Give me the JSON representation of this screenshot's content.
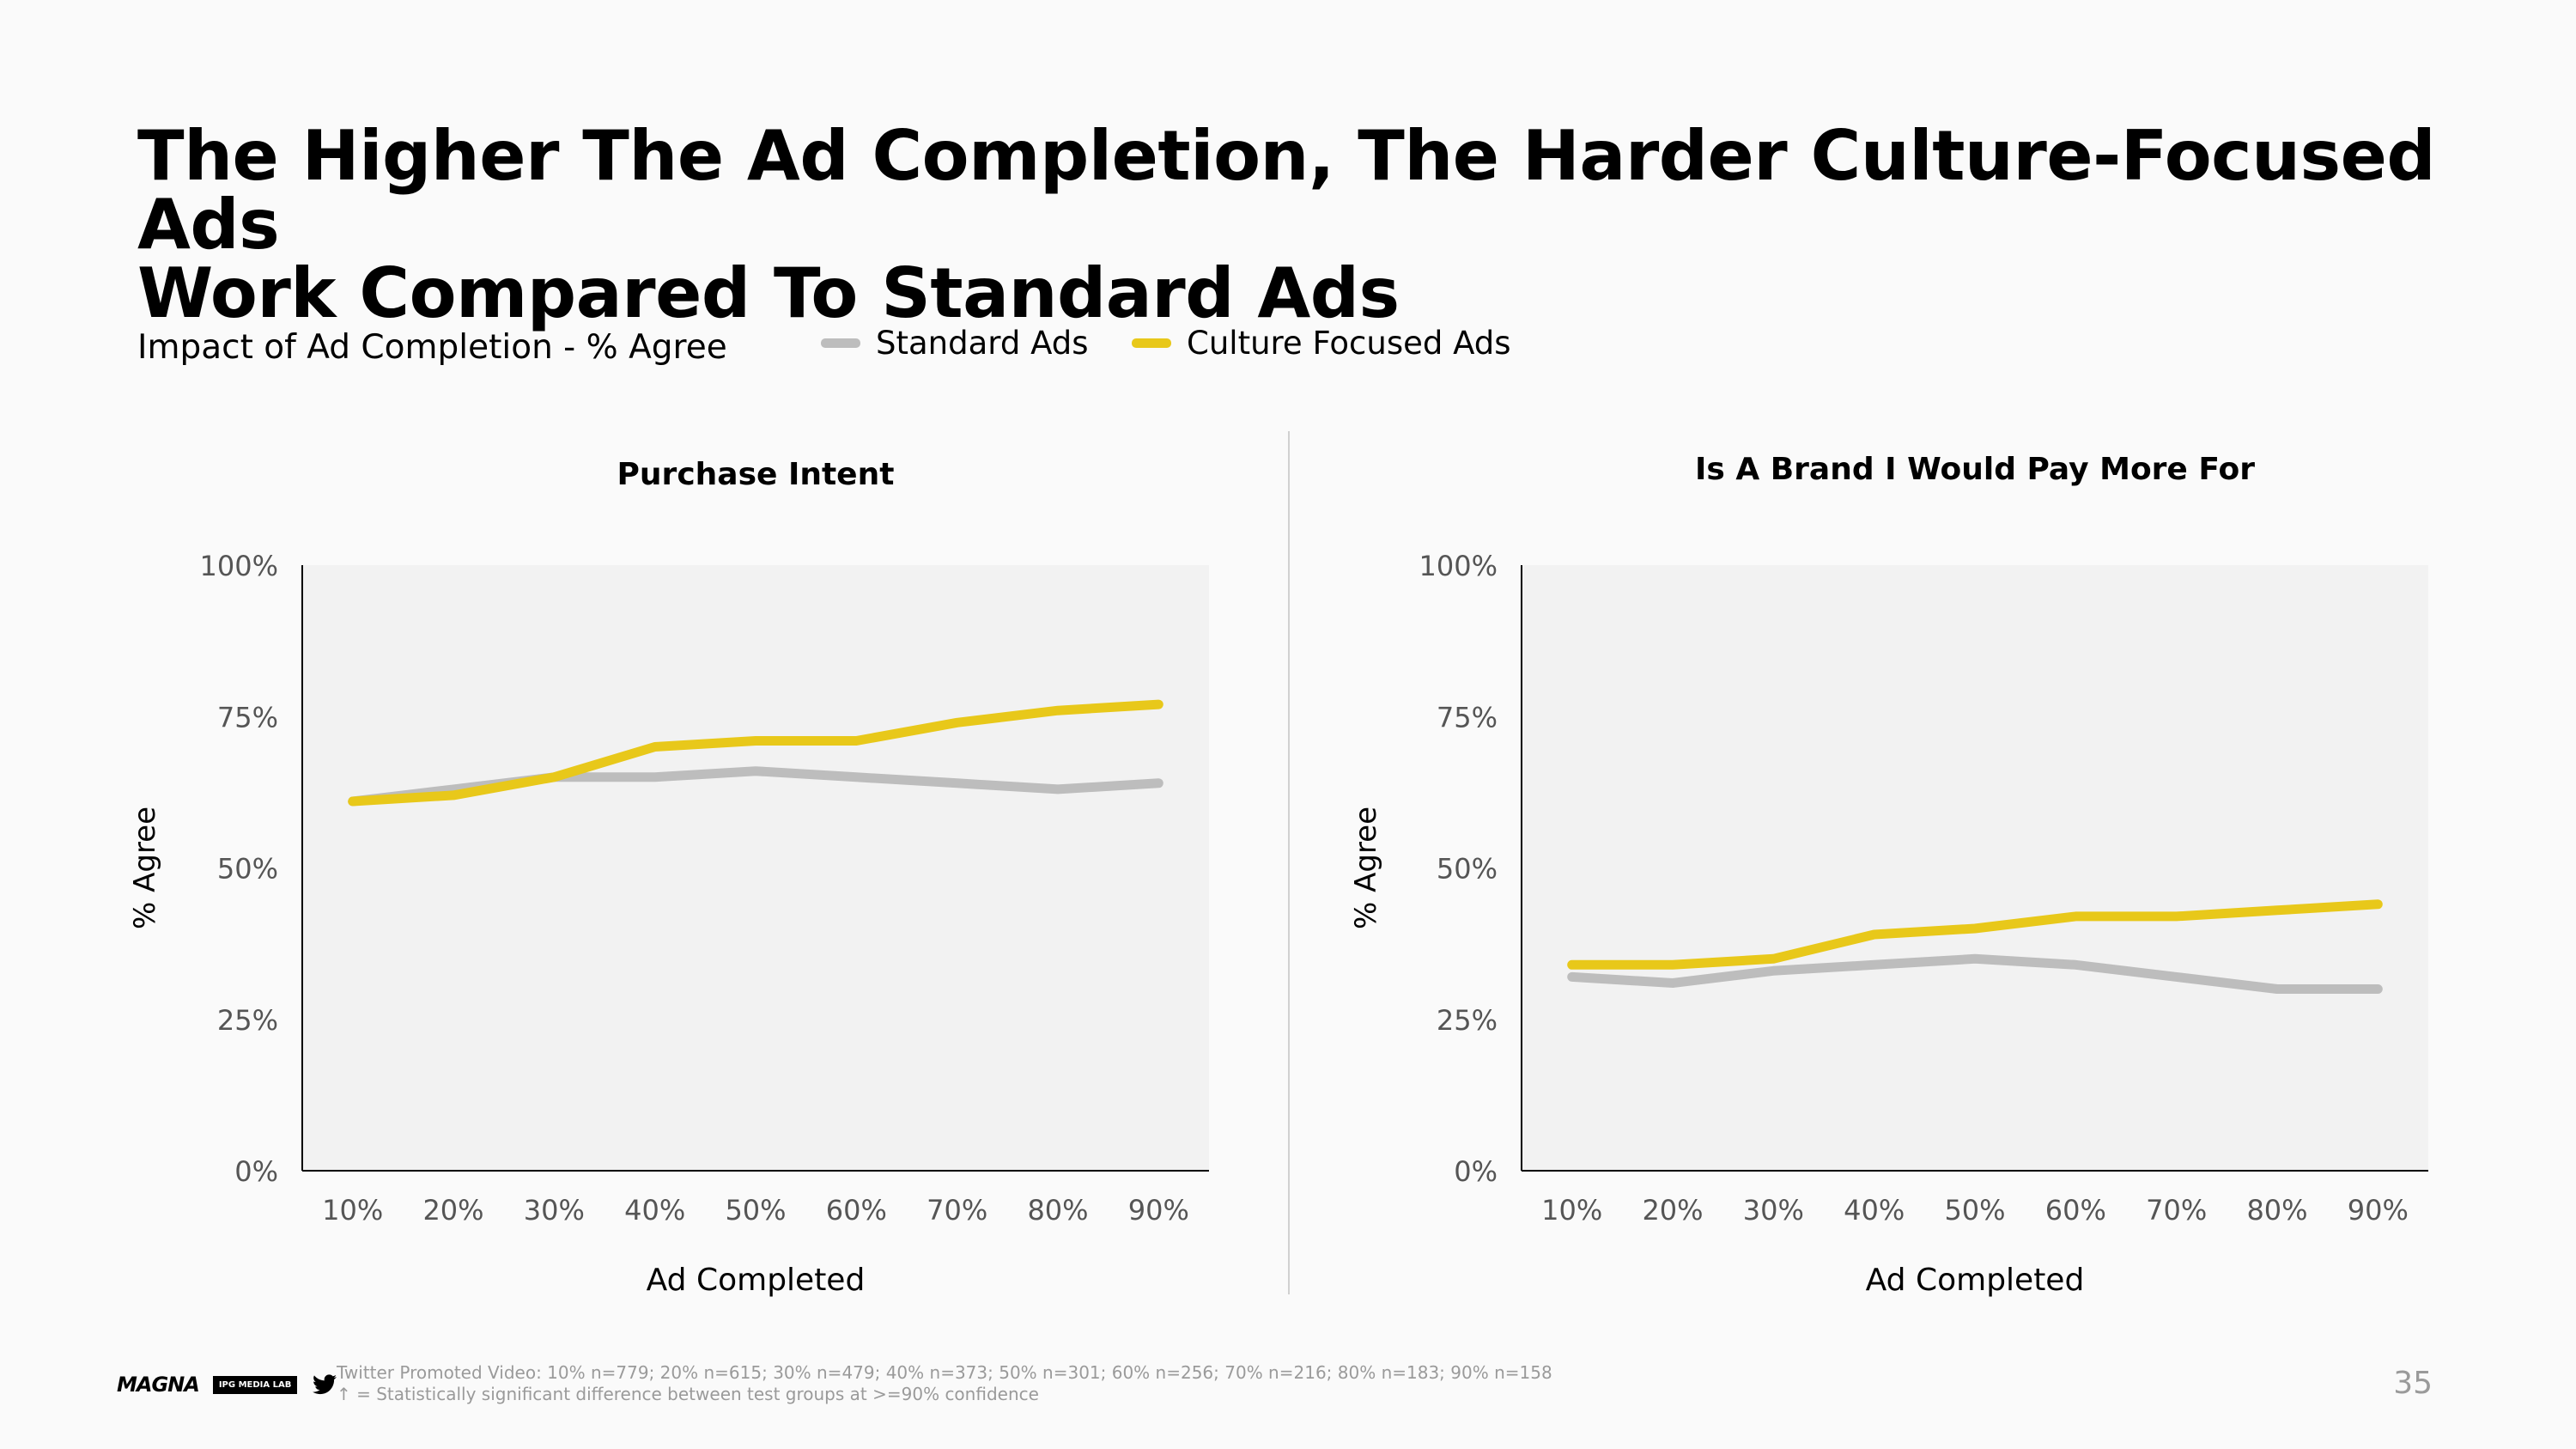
{
  "title_line1": "The Higher The Ad Completion, The Harder Culture-Focused Ads",
  "title_line2": "Work Compared To Standard Ads",
  "subtitle": "Impact of Ad Completion - % Agree",
  "legend": {
    "standard": {
      "label": "Standard Ads",
      "color": "#bdbdbd"
    },
    "culture": {
      "label": "Culture Focused Ads",
      "color": "#e8c81a"
    }
  },
  "chart_data": [
    {
      "type": "line",
      "title": "Purchase Intent",
      "xlabel": "Ad Completed",
      "ylabel": "% Agree",
      "ylim": [
        0,
        100
      ],
      "yticks": [
        "0%",
        "25%",
        "50%",
        "75%",
        "100%"
      ],
      "categories": [
        "10%",
        "20%",
        "30%",
        "40%",
        "50%",
        "60%",
        "70%",
        "80%",
        "90%"
      ],
      "series": [
        {
          "name": "Standard Ads",
          "color": "#bdbdbd",
          "values": [
            61,
            63,
            65,
            65,
            66,
            65,
            64,
            63,
            64
          ]
        },
        {
          "name": "Culture Focused Ads",
          "color": "#e8c81a",
          "values": [
            61,
            62,
            65,
            70,
            71,
            71,
            74,
            76,
            77
          ]
        }
      ]
    },
    {
      "type": "line",
      "title": "Is A Brand I Would Pay More For",
      "xlabel": "Ad Completed",
      "ylabel": "% Agree",
      "ylim": [
        0,
        100
      ],
      "yticks": [
        "0%",
        "25%",
        "50%",
        "75%",
        "100%"
      ],
      "categories": [
        "10%",
        "20%",
        "30%",
        "40%",
        "50%",
        "60%",
        "70%",
        "80%",
        "90%"
      ],
      "series": [
        {
          "name": "Standard Ads",
          "color": "#bdbdbd",
          "values": [
            32,
            31,
            33,
            34,
            35,
            34,
            32,
            30,
            30
          ]
        },
        {
          "name": "Culture Focused Ads",
          "color": "#e8c81a",
          "values": [
            34,
            34,
            35,
            39,
            40,
            42,
            42,
            43,
            44
          ]
        }
      ]
    }
  ],
  "footer": {
    "logo_magna": "MAGNA",
    "logo_ipg": "IPG MEDIA LAB",
    "note1": "Twitter Promoted Video: 10% n=779; 20% n=615; 30% n=479; 40% n=373; 50% n=301; 60% n=256; 70% n=216; 80% n=183; 90% n=158",
    "note2": "↑ = Statistically significant difference between test groups at >=90% confidence",
    "page_number": "35"
  }
}
